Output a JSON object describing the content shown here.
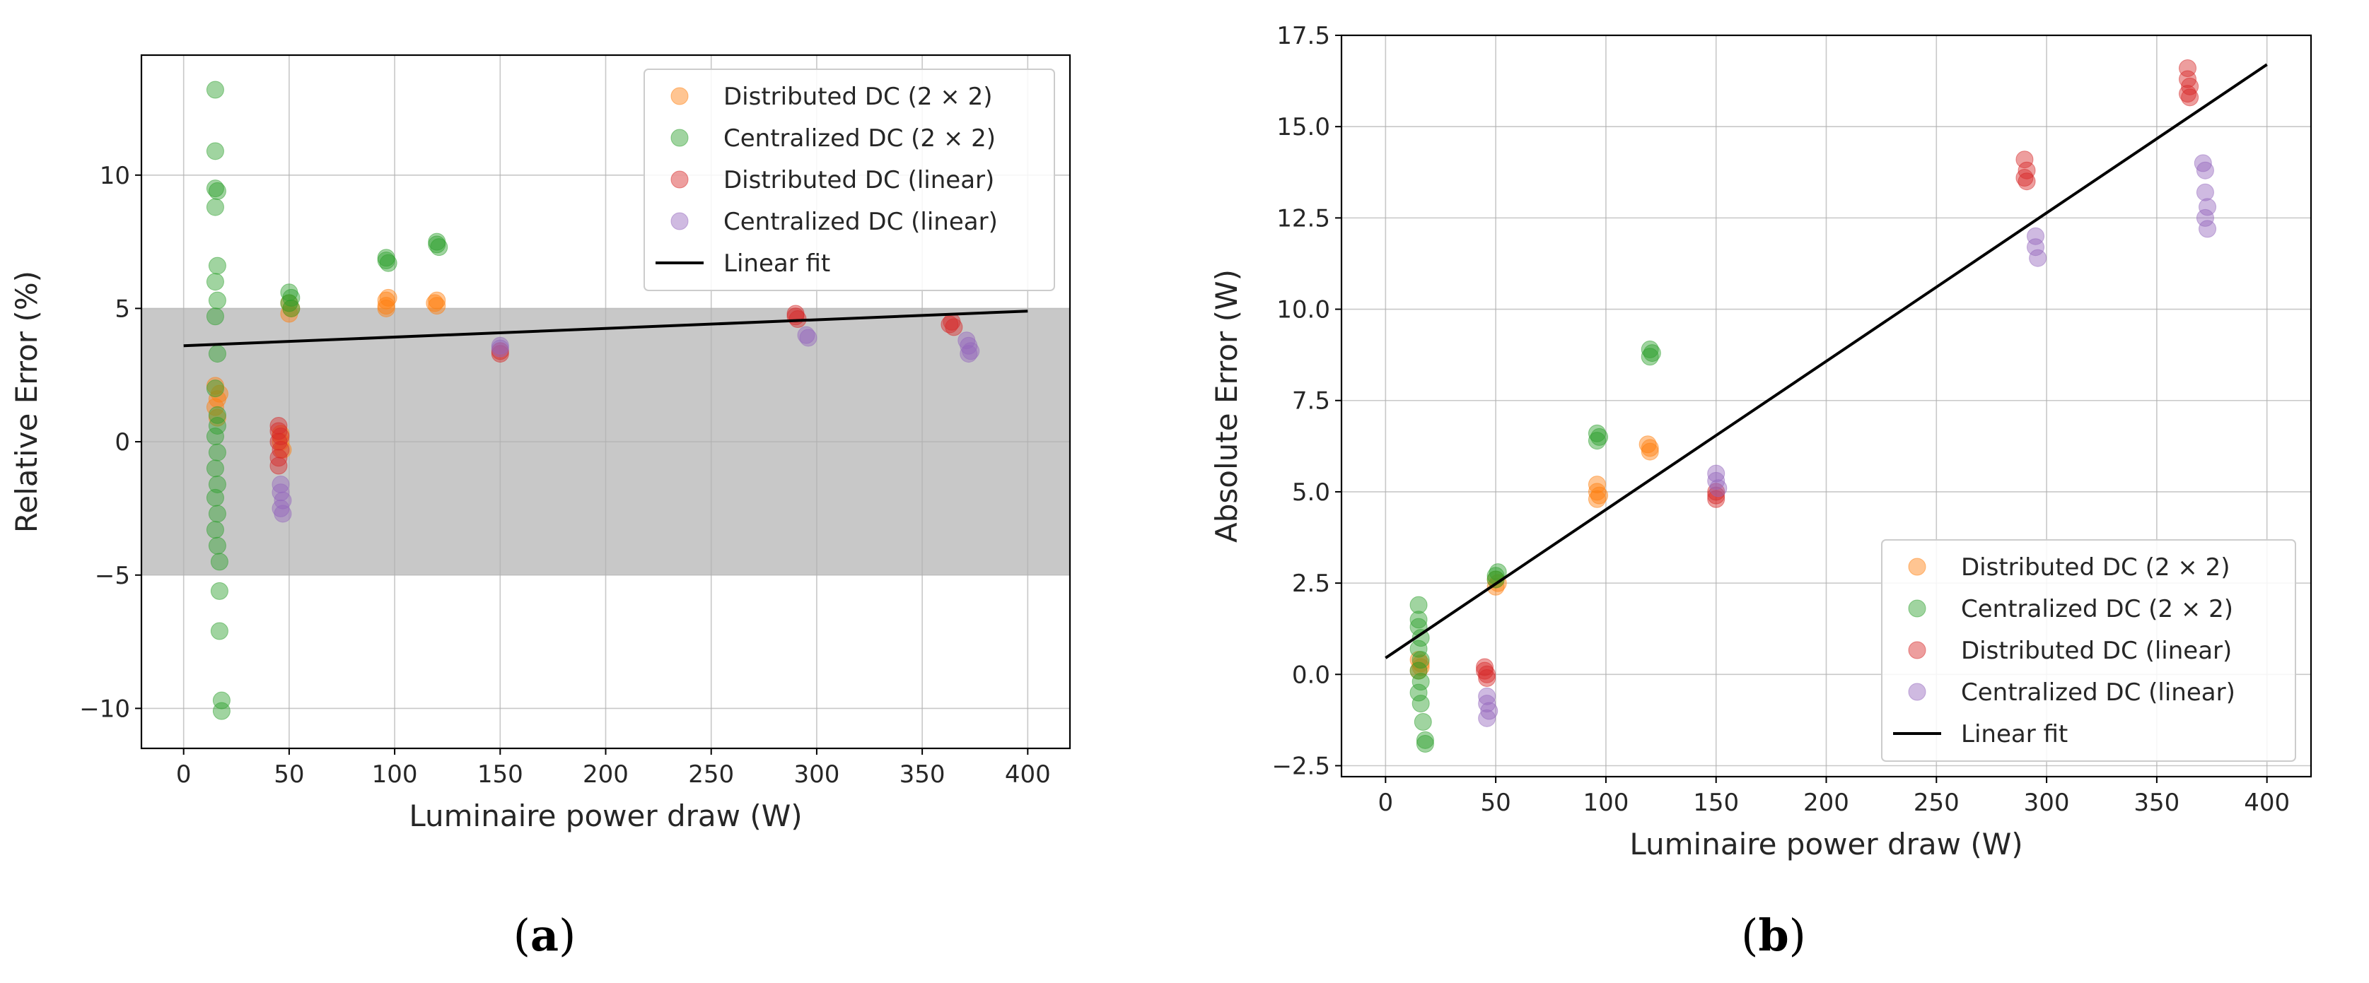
{
  "colors": {
    "distributed_2x2": "#ff7f0e",
    "centralized_2x2": "#2ca02c",
    "distributed_linear": "#d62728",
    "centralized_linear": "#9467bd",
    "fit": "#000000",
    "band": "#c8c8c8"
  },
  "chart_data": [
    {
      "type": "scatter",
      "panel_label": "(a)",
      "panel_letter": "a",
      "xlabel": "Luminaire power draw (W)",
      "ylabel": "Relative Error (%)",
      "xlim": [
        -20,
        420
      ],
      "ylim": [
        -11.5,
        14.5
      ],
      "xticks": [
        0,
        50,
        100,
        150,
        200,
        250,
        300,
        350,
        400
      ],
      "yticks": [
        -10,
        -5,
        0,
        5,
        10
      ],
      "grid": true,
      "band": [
        -5,
        5
      ],
      "legend_position": "top-right",
      "series": [
        {
          "name": "Distributed DC (2 × 2)",
          "color_key": "distributed_2x2",
          "points": [
            [
              15,
              2.1
            ],
            [
              16,
              1.6
            ],
            [
              15,
              1.3
            ],
            [
              16,
              0.9
            ],
            [
              17,
              1.8
            ],
            [
              46,
              0.3
            ],
            [
              46,
              0.0
            ],
            [
              47,
              -0.3
            ],
            [
              50,
              4.8
            ],
            [
              51,
              5.0
            ],
            [
              50,
              5.2
            ],
            [
              96,
              5.1
            ],
            [
              96,
              5.3
            ],
            [
              97,
              5.4
            ],
            [
              96,
              5.0
            ],
            [
              119,
              5.2
            ],
            [
              120,
              5.3
            ],
            [
              120,
              5.1
            ]
          ]
        },
        {
          "name": "Centralized DC (2 × 2)",
          "color_key": "centralized_2x2",
          "points": [
            [
              15,
              13.2
            ],
            [
              15,
              10.9
            ],
            [
              15,
              9.5
            ],
            [
              16,
              9.4
            ],
            [
              15,
              8.8
            ],
            [
              16,
              6.6
            ],
            [
              15,
              6.0
            ],
            [
              16,
              5.3
            ],
            [
              15,
              4.7
            ],
            [
              16,
              3.3
            ],
            [
              15,
              2.0
            ],
            [
              16,
              1.0
            ],
            [
              16,
              0.6
            ],
            [
              15,
              0.2
            ],
            [
              16,
              -0.4
            ],
            [
              15,
              -1.0
            ],
            [
              16,
              -1.6
            ],
            [
              15,
              -2.1
            ],
            [
              16,
              -2.7
            ],
            [
              15,
              -3.3
            ],
            [
              16,
              -3.9
            ],
            [
              17,
              -4.5
            ],
            [
              17,
              -5.6
            ],
            [
              17,
              -7.1
            ],
            [
              18,
              -9.7
            ],
            [
              18,
              -10.1
            ],
            [
              50,
              5.6
            ],
            [
              51,
              5.4
            ],
            [
              50,
              5.2
            ],
            [
              51,
              5.0
            ],
            [
              96,
              6.9
            ],
            [
              97,
              6.7
            ],
            [
              96,
              6.8
            ],
            [
              120,
              7.5
            ],
            [
              121,
              7.3
            ],
            [
              120,
              7.4
            ]
          ]
        },
        {
          "name": "Distributed DC (linear)",
          "color_key": "distributed_linear",
          "points": [
            [
              45,
              0.6
            ],
            [
              45,
              0.4
            ],
            [
              46,
              0.2
            ],
            [
              45,
              0.0
            ],
            [
              46,
              -0.3
            ],
            [
              45,
              -0.6
            ],
            [
              45,
              -0.9
            ],
            [
              150,
              3.3
            ],
            [
              150,
              3.4
            ],
            [
              290,
              4.8
            ],
            [
              290,
              4.7
            ],
            [
              291,
              4.6
            ],
            [
              364,
              4.5
            ],
            [
              365,
              4.3
            ],
            [
              363,
              4.4
            ]
          ]
        },
        {
          "name": "Centralized DC (linear)",
          "color_key": "centralized_linear",
          "points": [
            [
              46,
              -1.6
            ],
            [
              46,
              -1.9
            ],
            [
              47,
              -2.2
            ],
            [
              46,
              -2.5
            ],
            [
              47,
              -2.7
            ],
            [
              150,
              3.6
            ],
            [
              150,
              3.5
            ],
            [
              295,
              4.0
            ],
            [
              296,
              3.9
            ],
            [
              371,
              3.8
            ],
            [
              372,
              3.6
            ],
            [
              373,
              3.4
            ],
            [
              372,
              3.3
            ]
          ]
        }
      ],
      "fit": {
        "name": "Linear fit",
        "x": [
          0,
          400
        ],
        "y": [
          3.6,
          4.9
        ]
      }
    },
    {
      "type": "scatter",
      "panel_label": "(b)",
      "panel_letter": "b",
      "xlabel": "Luminaire power draw (W)",
      "ylabel": "Absolute Error (W)",
      "xlim": [
        -20,
        420
      ],
      "ylim": [
        -2.8,
        17.5
      ],
      "xticks": [
        0,
        50,
        100,
        150,
        200,
        250,
        300,
        350,
        400
      ],
      "yticks": [
        -2.5,
        0.0,
        2.5,
        5.0,
        7.5,
        10.0,
        12.5,
        15.0,
        17.5
      ],
      "ytick_labels": [
        "−2.5",
        "0.0",
        "2.5",
        "5.0",
        "7.5",
        "10.0",
        "12.5",
        "15.0",
        "17.5"
      ],
      "grid": true,
      "legend_position": "bottom-right",
      "series": [
        {
          "name": "Distributed DC (2 × 2)",
          "color_key": "distributed_2x2",
          "points": [
            [
              15,
              0.4
            ],
            [
              16,
              0.2
            ],
            [
              15,
              0.1
            ],
            [
              16,
              0.3
            ],
            [
              50,
              2.4
            ],
            [
              51,
              2.5
            ],
            [
              50,
              2.6
            ],
            [
              96,
              5.2
            ],
            [
              96,
              5.0
            ],
            [
              97,
              4.9
            ],
            [
              96,
              4.8
            ],
            [
              119,
              6.3
            ],
            [
              120,
              6.1
            ],
            [
              120,
              6.2
            ]
          ]
        },
        {
          "name": "Centralized DC (2 × 2)",
          "color_key": "centralized_2x2",
          "points": [
            [
              15,
              1.9
            ],
            [
              15,
              1.5
            ],
            [
              15,
              1.3
            ],
            [
              16,
              1.0
            ],
            [
              15,
              0.7
            ],
            [
              16,
              0.4
            ],
            [
              15,
              0.1
            ],
            [
              16,
              -0.2
            ],
            [
              15,
              -0.5
            ],
            [
              16,
              -0.8
            ],
            [
              17,
              -1.3
            ],
            [
              18,
              -1.8
            ],
            [
              18,
              -1.9
            ],
            [
              50,
              2.7
            ],
            [
              51,
              2.8
            ],
            [
              50,
              2.6
            ],
            [
              96,
              6.6
            ],
            [
              97,
              6.5
            ],
            [
              96,
              6.4
            ],
            [
              120,
              8.9
            ],
            [
              121,
              8.8
            ],
            [
              120,
              8.7
            ]
          ]
        },
        {
          "name": "Distributed DC (linear)",
          "color_key": "distributed_linear",
          "points": [
            [
              45,
              0.2
            ],
            [
              45,
              0.1
            ],
            [
              46,
              0.0
            ],
            [
              46,
              -0.1
            ],
            [
              150,
              4.9
            ],
            [
              150,
              5.0
            ],
            [
              150,
              4.8
            ],
            [
              290,
              14.1
            ],
            [
              291,
              13.8
            ],
            [
              290,
              13.6
            ],
            [
              291,
              13.5
            ],
            [
              364,
              16.6
            ],
            [
              364,
              16.3
            ],
            [
              365,
              16.1
            ],
            [
              364,
              15.9
            ],
            [
              365,
              15.8
            ]
          ]
        },
        {
          "name": "Centralized DC (linear)",
          "color_key": "centralized_linear",
          "points": [
            [
              46,
              -0.6
            ],
            [
              46,
              -0.8
            ],
            [
              47,
              -1.0
            ],
            [
              46,
              -1.2
            ],
            [
              150,
              5.5
            ],
            [
              150,
              5.3
            ],
            [
              151,
              5.1
            ],
            [
              295,
              12.0
            ],
            [
              295,
              11.7
            ],
            [
              296,
              11.4
            ],
            [
              371,
              14.0
            ],
            [
              372,
              13.8
            ],
            [
              372,
              13.2
            ],
            [
              373,
              12.8
            ],
            [
              372,
              12.5
            ],
            [
              373,
              12.2
            ]
          ]
        }
      ],
      "fit": {
        "name": "Linear fit",
        "x": [
          0,
          400
        ],
        "y": [
          0.45,
          16.7
        ]
      }
    }
  ]
}
